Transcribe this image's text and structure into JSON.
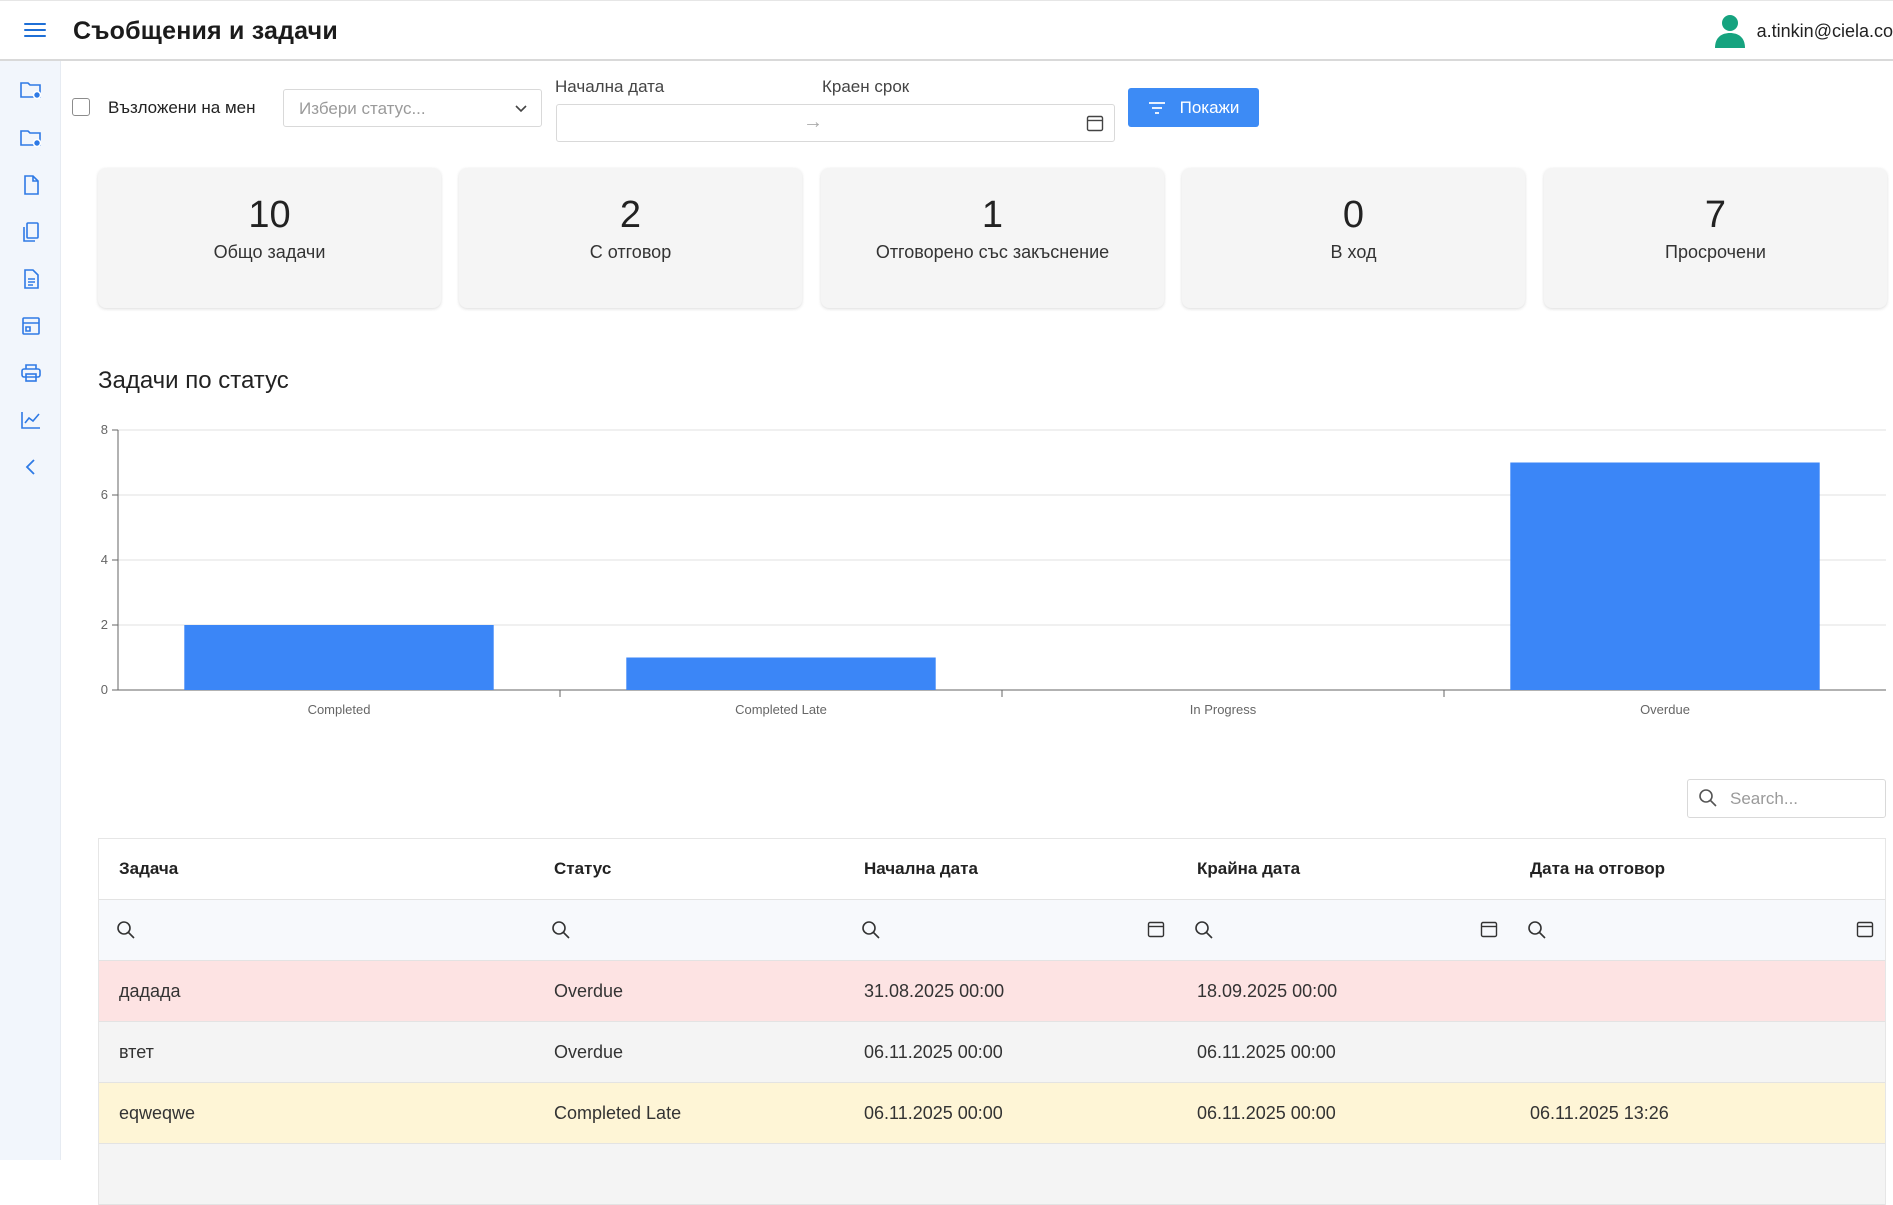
{
  "header": {
    "title": "Съобщения и задачи",
    "user_email": "a.tinkin@ciela.co"
  },
  "sidebar": {
    "items": [
      {
        "icon": "folder-settings-icon"
      },
      {
        "icon": "folder-settings-icon"
      },
      {
        "icon": "file-icon"
      },
      {
        "icon": "copy-icon"
      },
      {
        "icon": "file-text-icon"
      },
      {
        "icon": "layout-icon"
      },
      {
        "icon": "printer-icon"
      },
      {
        "icon": "line-chart-icon"
      },
      {
        "icon": "chevron-left-icon"
      }
    ]
  },
  "filters": {
    "assigned_to_me_label": "Възложени на мен",
    "status_placeholder": "Избери статус...",
    "start_date_label": "Начална дата",
    "end_date_label": "Краен срок",
    "date_arrow": "→",
    "show_button_label": "Покажи"
  },
  "stats": [
    {
      "value": "10",
      "label": "Общо задачи"
    },
    {
      "value": "2",
      "label": "С отговор"
    },
    {
      "value": "1",
      "label": "Отговорено със закъснение"
    },
    {
      "value": "0",
      "label": "В ход"
    },
    {
      "value": "7",
      "label": "Просрочени"
    }
  ],
  "chart_section": {
    "title": "Задачи по статус"
  },
  "chart_data": {
    "type": "bar",
    "title": "Задачи по статус",
    "categories": [
      "Completed",
      "Completed Late",
      "In Progress",
      "Overdue"
    ],
    "values": [
      2,
      1,
      0,
      7
    ],
    "ylim": [
      0,
      8
    ],
    "yticks": [
      0,
      2,
      4,
      6,
      8
    ],
    "grid": true,
    "color": "#3b86f7"
  },
  "table": {
    "search_placeholder": "Search...",
    "columns": [
      "Задача",
      "Статус",
      "Начална дата",
      "Крайна дата",
      "Дата на отговор"
    ],
    "rows": [
      {
        "task": "дадада",
        "status": "Overdue",
        "start": "31.08.2025 00:00",
        "end": "18.09.2025 00:00",
        "answered": ""
      },
      {
        "task": "втет",
        "status": "Overdue",
        "start": "06.11.2025 00:00",
        "end": "06.11.2025 00:00",
        "answered": ""
      },
      {
        "task": "eqweqwe",
        "status": "Completed Late",
        "start": "06.11.2025 00:00",
        "end": "06.11.2025 00:00",
        "answered": "06.11.2025 13:26"
      }
    ]
  }
}
